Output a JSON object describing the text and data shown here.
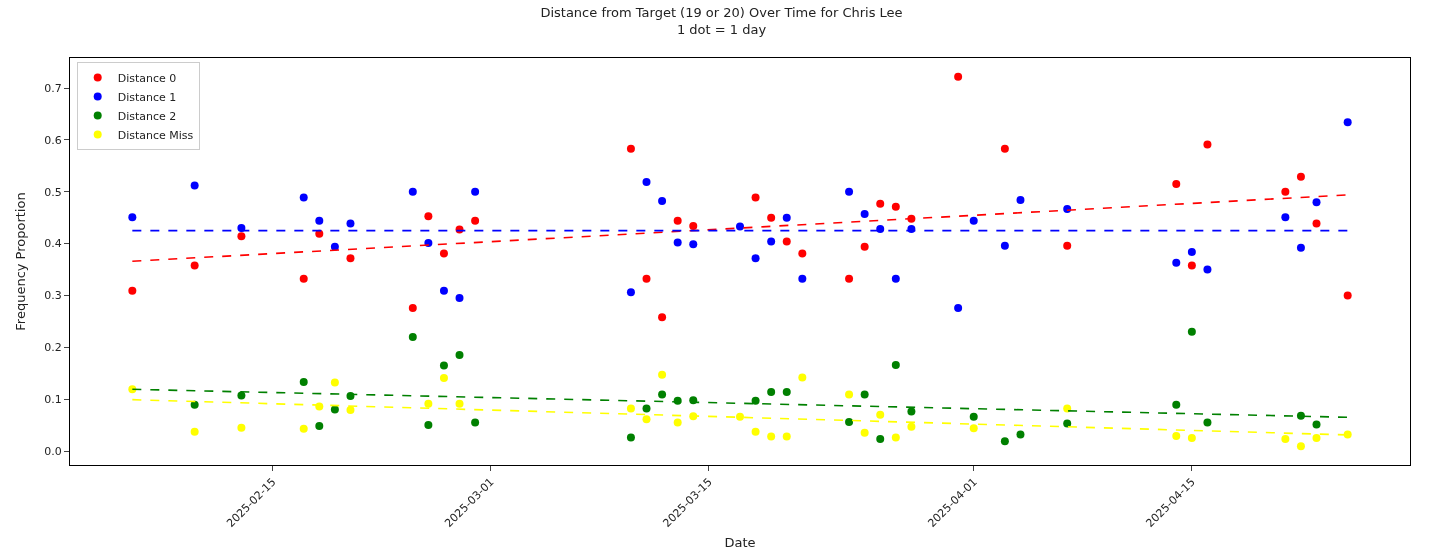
{
  "chart_data": {
    "type": "scatter",
    "title": "Distance from Target (19 or 20) Over Time for Chris Lee",
    "subtitle": "1 dot = 1 day",
    "xlabel": "Date",
    "ylabel": "Frequency Proportion",
    "x": [
      "2025-02-06",
      "2025-02-10",
      "2025-02-13",
      "2025-02-17",
      "2025-02-18",
      "2025-02-19",
      "2025-02-20",
      "2025-02-24",
      "2025-02-25",
      "2025-02-26",
      "2025-02-27",
      "2025-02-28",
      "2025-03-10",
      "2025-03-11",
      "2025-03-12",
      "2025-03-13",
      "2025-03-14",
      "2025-03-17",
      "2025-03-18",
      "2025-03-19",
      "2025-03-20",
      "2025-03-21",
      "2025-03-24",
      "2025-03-25",
      "2025-03-26",
      "2025-03-27",
      "2025-03-28",
      "2025-03-31",
      "2025-04-01",
      "2025-04-03",
      "2025-04-04",
      "2025-04-07",
      "2025-04-14",
      "2025-04-15",
      "2025-04-16",
      "2025-04-21",
      "2025-04-22",
      "2025-04-23",
      "2025-04-25"
    ],
    "series": [
      {
        "name": "Distance 0",
        "color": "#ff0000",
        "values": [
          0.309,
          0.358,
          0.414,
          0.332,
          0.419,
          null,
          0.372,
          0.276,
          0.453,
          0.381,
          0.427,
          0.444,
          0.583,
          0.332,
          0.258,
          0.444,
          0.434,
          null,
          0.489,
          0.45,
          0.404,
          0.381,
          0.332,
          0.394,
          0.477,
          0.471,
          0.448,
          0.722,
          null,
          0.583,
          null,
          0.396,
          0.515,
          0.358,
          0.591,
          0.5,
          0.529,
          0.439,
          0.3
        ]
      },
      {
        "name": "Distance 1",
        "color": "#0000ff",
        "values": [
          0.451,
          0.512,
          0.43,
          0.489,
          0.444,
          0.394,
          0.439,
          0.5,
          0.401,
          0.309,
          0.295,
          0.5,
          0.306,
          0.519,
          0.482,
          0.402,
          0.399,
          0.433,
          0.372,
          0.404,
          0.45,
          0.332,
          0.5,
          0.457,
          0.428,
          0.332,
          0.428,
          0.276,
          0.444,
          0.396,
          0.484,
          0.467,
          0.363,
          0.384,
          0.35,
          0.451,
          0.392,
          0.48,
          0.634
        ]
      },
      {
        "name": "Distance 2",
        "color": "#008000",
        "values": [
          null,
          0.089,
          0.107,
          0.133,
          0.048,
          0.08,
          0.106,
          0.22,
          0.05,
          0.165,
          0.185,
          0.055,
          0.026,
          0.082,
          0.109,
          0.097,
          0.098,
          null,
          0.097,
          0.114,
          0.114,
          null,
          0.056,
          0.109,
          0.023,
          0.166,
          0.076,
          null,
          0.066,
          0.019,
          0.032,
          0.053,
          0.089,
          0.23,
          0.055,
          null,
          0.068,
          0.051,
          null
        ]
      },
      {
        "name": "Distance Miss",
        "color": "#ffff00",
        "values": [
          0.119,
          0.037,
          0.045,
          0.043,
          0.086,
          0.132,
          0.079,
          null,
          0.091,
          0.141,
          0.091,
          null,
          0.082,
          0.061,
          0.147,
          0.055,
          0.067,
          0.066,
          0.037,
          0.028,
          0.028,
          0.142,
          0.109,
          0.035,
          0.07,
          0.026,
          0.047,
          null,
          0.044,
          null,
          null,
          0.082,
          0.029,
          0.025,
          null,
          0.023,
          0.009,
          0.025,
          0.032
        ]
      },
      {
        "type": "line",
        "marker": "none",
        "line_style": "dashed",
        "color": "#ff0000",
        "x": [
          "2025-02-06",
          "2025-04-25"
        ],
        "values": [
          0.366,
          0.494
        ]
      },
      {
        "type": "line",
        "marker": "none",
        "line_style": "dashed",
        "color": "#0000ff",
        "x": [
          "2025-02-06",
          "2025-04-25"
        ],
        "values": [
          0.425,
          0.425
        ]
      },
      {
        "type": "line",
        "marker": "none",
        "line_style": "dashed",
        "color": "#008000",
        "x": [
          "2025-02-06",
          "2025-04-25"
        ],
        "values": [
          0.119,
          0.065
        ]
      },
      {
        "type": "line",
        "marker": "none",
        "line_style": "dashed",
        "color": "#ffff00",
        "x": [
          "2025-02-06",
          "2025-04-25"
        ],
        "values": [
          0.099,
          0.031
        ]
      }
    ],
    "xlim": [
      "2025-02-02",
      "2025-04-29"
    ],
    "xticks": [
      "2025-02-15",
      "2025-03-01",
      "2025-03-15",
      "2025-04-01",
      "2025-04-15"
    ],
    "ylim": [
      -0.027,
      0.758
    ],
    "yticks": [
      {
        "value": 0,
        "label": "0.0"
      },
      0.1,
      0.2,
      0.3,
      0.4,
      0.5,
      0.6,
      0.7
    ],
    "marker": "circle",
    "legend": "top left"
  }
}
